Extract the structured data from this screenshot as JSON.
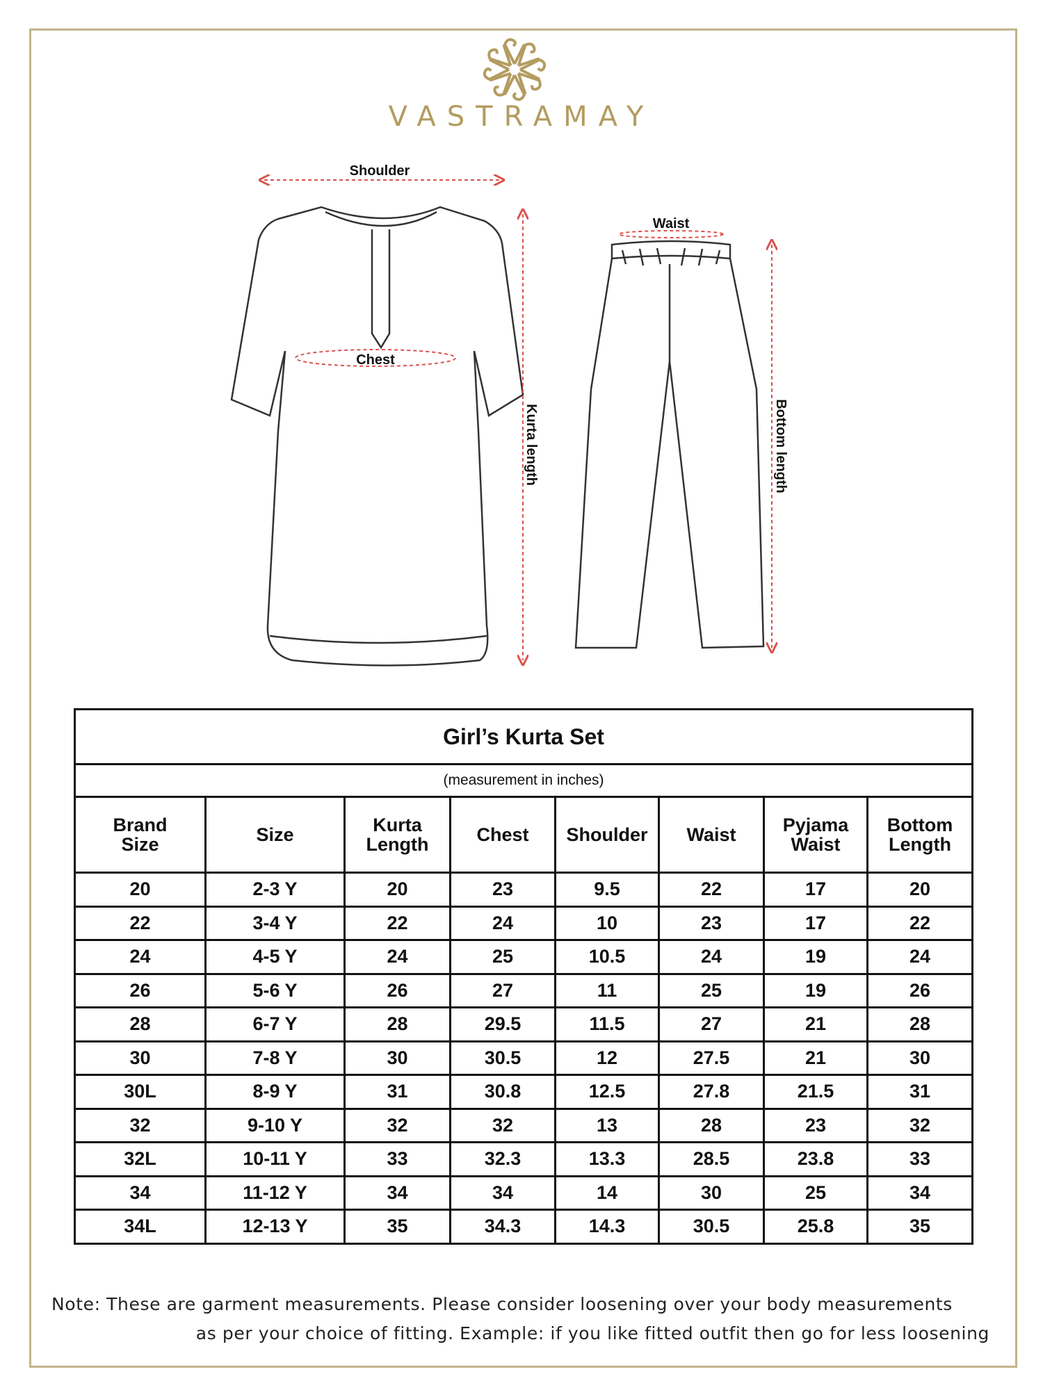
{
  "brand": {
    "name": "VASTRAMAY",
    "logo_icon": "mandala-logo-icon",
    "color": "#b39c60"
  },
  "diagram": {
    "kurta_labels": {
      "shoulder": "Shoulder",
      "chest": "Chest",
      "length": "Kurta length"
    },
    "pyjama_labels": {
      "waist": "Waist",
      "length": "Bottom length"
    },
    "arrow_color": "#d9534f"
  },
  "table": {
    "title": "Girl’s Kurta Set",
    "subtitle": "(measurement in inches)",
    "headers": [
      [
        "Brand",
        "Size"
      ],
      [
        "Size"
      ],
      [
        "Kurta",
        "Length"
      ],
      [
        "Chest"
      ],
      [
        "Shoulder"
      ],
      [
        "Waist"
      ],
      [
        "Pyjama",
        "Waist"
      ],
      [
        "Bottom",
        "Length"
      ]
    ],
    "rows": [
      [
        "20",
        "2-3 Y",
        "20",
        "23",
        "9.5",
        "22",
        "17",
        "20"
      ],
      [
        "22",
        "3-4 Y",
        "22",
        "24",
        "10",
        "23",
        "17",
        "22"
      ],
      [
        "24",
        "4-5 Y",
        "24",
        "25",
        "10.5",
        "24",
        "19",
        "24"
      ],
      [
        "26",
        "5-6 Y",
        "26",
        "27",
        "11",
        "25",
        "19",
        "26"
      ],
      [
        "28",
        "6-7 Y",
        "28",
        "29.5",
        "11.5",
        "27",
        "21",
        "28"
      ],
      [
        "30",
        "7-8 Y",
        "30",
        "30.5",
        "12",
        "27.5",
        "21",
        "30"
      ],
      [
        "30L",
        "8-9 Y",
        "31",
        "30.8",
        "12.5",
        "27.8",
        "21.5",
        "31"
      ],
      [
        "32",
        "9-10 Y",
        "32",
        "32",
        "13",
        "28",
        "23",
        "32"
      ],
      [
        "32L",
        "10-11 Y",
        "33",
        "32.3",
        "13.3",
        "28.5",
        "23.8",
        "33"
      ],
      [
        "34",
        "11-12 Y",
        "34",
        "34",
        "14",
        "30",
        "25",
        "34"
      ],
      [
        "34L",
        "12-13 Y",
        "35",
        "34.3",
        "14.3",
        "30.5",
        "25.8",
        "35"
      ]
    ]
  },
  "note": {
    "line1": "Note: These are garment measurements. Please consider loosening over your body measurements",
    "line2": "as per your choice of fitting. Example: if you like fitted outfit then go for less loosening"
  }
}
